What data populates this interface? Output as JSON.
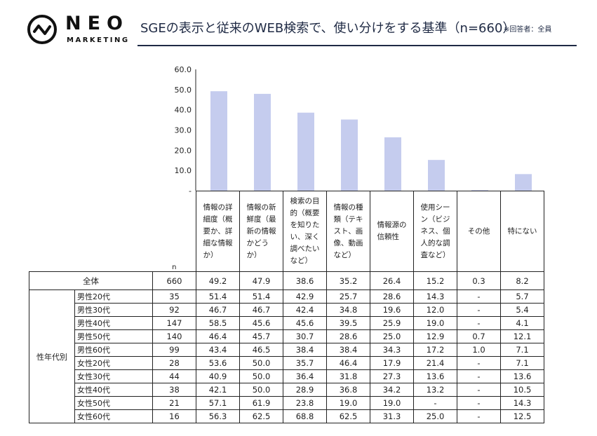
{
  "brand": {
    "name": "NEO",
    "sub": "MARKETING"
  },
  "title": "SGEの表示と従来のWEB検索で、使い分けをする基準（n=660）",
  "note": "※回答者：全員",
  "colors": {
    "bar": "#c5ccee",
    "title": "#1f2a44"
  },
  "chart_data": {
    "type": "bar",
    "categories": [
      "情報の詳細度（概要か、詳細な情報か）",
      "情報の新鮮度（最新の情報かどうか）",
      "検索の目的（概要を知りたい、深く調べたいなど）",
      "情報の種類（テキスト、画像、動画など）",
      "情報源の信頼性",
      "使用シーン（ビジネス、個人的な調査など）",
      "その他",
      "特にない"
    ],
    "values": [
      49.2,
      47.9,
      38.6,
      35.2,
      26.4,
      15.2,
      0.3,
      8.2
    ],
    "ylim": [
      0,
      60
    ],
    "y_ticks": [
      "-",
      "10.0",
      "20.0",
      "30.0",
      "40.0",
      "50.0",
      "60.0"
    ],
    "grid": false
  },
  "table": {
    "headers": [
      "情報の詳\n細度（概\n要か、詳\n細な情報\nか）",
      "情報の新\n鮮度（最\n新の情報\nかどう\nか）",
      "検索の目\n的（概要\nを知りた\nい、深く\n調べたい\nなど）",
      "情報の種\n類（テキ\nスト、画\n像、動画\nなど）",
      "情報源の\n信頼性",
      "使用シー\nン（ビジ\nネス、個\n人的な調\n査など）",
      "その他",
      "特にない"
    ],
    "n_label": "n",
    "total": {
      "label": "全体",
      "n": "660",
      "values": [
        "49.2",
        "47.9",
        "38.6",
        "35.2",
        "26.4",
        "15.2",
        "0.3",
        "8.2"
      ]
    },
    "group_label": "性年代別",
    "rows": [
      {
        "label": "男性20代",
        "n": "35",
        "values": [
          "51.4",
          "51.4",
          "42.9",
          "25.7",
          "28.6",
          "14.3",
          "-",
          "5.7"
        ]
      },
      {
        "label": "男性30代",
        "n": "92",
        "values": [
          "46.7",
          "46.7",
          "42.4",
          "34.8",
          "19.6",
          "12.0",
          "-",
          "5.4"
        ]
      },
      {
        "label": "男性40代",
        "n": "147",
        "values": [
          "58.5",
          "45.6",
          "45.6",
          "39.5",
          "25.9",
          "19.0",
          "-",
          "4.1"
        ]
      },
      {
        "label": "男性50代",
        "n": "140",
        "values": [
          "46.4",
          "45.7",
          "30.7",
          "28.6",
          "25.0",
          "12.9",
          "0.7",
          "12.1"
        ]
      },
      {
        "label": "男性60代",
        "n": "99",
        "values": [
          "43.4",
          "46.5",
          "38.4",
          "38.4",
          "34.3",
          "17.2",
          "1.0",
          "7.1"
        ]
      },
      {
        "label": "女性20代",
        "n": "28",
        "values": [
          "53.6",
          "50.0",
          "35.7",
          "46.4",
          "17.9",
          "21.4",
          "-",
          "7.1"
        ]
      },
      {
        "label": "女性30代",
        "n": "44",
        "values": [
          "40.9",
          "50.0",
          "36.4",
          "31.8",
          "27.3",
          "13.6",
          "-",
          "13.6"
        ]
      },
      {
        "label": "女性40代",
        "n": "38",
        "values": [
          "42.1",
          "50.0",
          "28.9",
          "36.8",
          "34.2",
          "13.2",
          "-",
          "10.5"
        ]
      },
      {
        "label": "女性50代",
        "n": "21",
        "values": [
          "57.1",
          "61.9",
          "23.8",
          "19.0",
          "19.0",
          "-",
          "-",
          "14.3"
        ]
      },
      {
        "label": "女性60代",
        "n": "16",
        "values": [
          "56.3",
          "62.5",
          "68.8",
          "62.5",
          "31.3",
          "25.0",
          "-",
          "12.5"
        ]
      }
    ]
  }
}
